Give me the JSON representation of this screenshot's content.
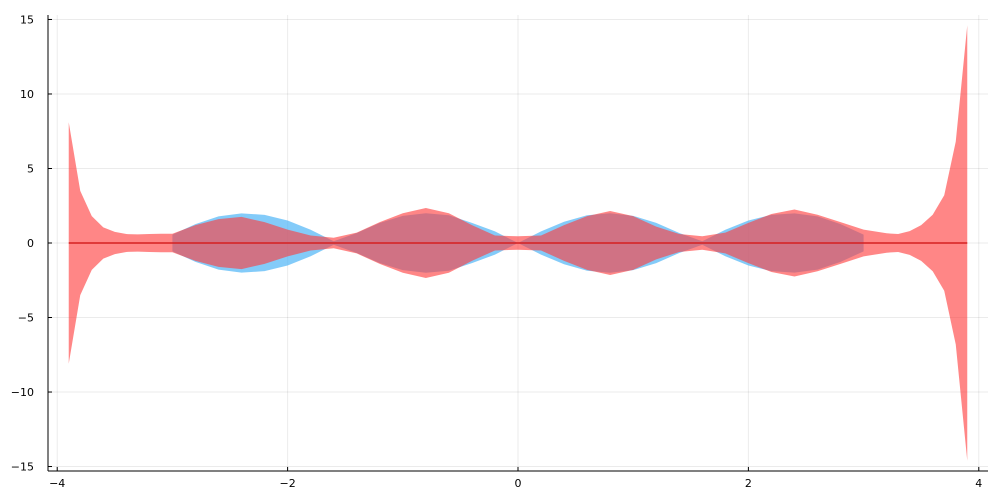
{
  "chart_data": {
    "type": "area",
    "title": "",
    "xlabel": "",
    "ylabel": "",
    "xlim": [
      -4.08,
      4.08
    ],
    "ylim": [
      -15.3,
      15.3
    ],
    "xticks": [
      -4,
      -2,
      0,
      2,
      4
    ],
    "yticks": [
      -15,
      -10,
      -5,
      0,
      5,
      10,
      15
    ],
    "xtick_labels": [
      "−4",
      "−2",
      "0",
      "2",
      "4"
    ],
    "ytick_labels": [
      "−15",
      "−10",
      "−5",
      "0",
      "5",
      "10",
      "15"
    ],
    "grid": true,
    "legend": "none",
    "colors": {
      "blue_band": "#59b9f7",
      "red_band": "#ff3b3b",
      "line": "#d62020"
    },
    "series": [
      {
        "kind": "band",
        "color": "#59b9f7",
        "opacity": 0.75,
        "x": [
          -3.0,
          -2.8,
          -2.6,
          -2.4,
          -2.2,
          -2.0,
          -1.8,
          -1.6,
          -1.4,
          -1.2,
          -1.0,
          -0.8,
          -0.6,
          -0.4,
          -0.2,
          0.0,
          0.2,
          0.4,
          0.6,
          0.8,
          1.0,
          1.2,
          1.4,
          1.6,
          1.8,
          2.0,
          2.2,
          2.4,
          2.6,
          2.8,
          3.0
        ],
        "upper": [
          0.56,
          1.27,
          1.79,
          1.99,
          1.89,
          1.51,
          0.89,
          0.12,
          0.67,
          1.35,
          1.82,
          2.0,
          1.86,
          1.35,
          0.78,
          0.0,
          0.78,
          1.43,
          1.86,
          2.0,
          1.82,
          1.35,
          0.67,
          0.12,
          0.89,
          1.51,
          1.89,
          1.99,
          1.79,
          1.27,
          0.56
        ],
        "lower": [
          -0.56,
          -1.27,
          -1.79,
          -1.99,
          -1.89,
          -1.51,
          -0.89,
          -0.12,
          -0.67,
          -1.35,
          -1.82,
          -2.0,
          -1.86,
          -1.35,
          -0.78,
          0.0,
          -0.78,
          -1.43,
          -1.86,
          -2.0,
          -1.82,
          -1.35,
          -0.67,
          -0.12,
          -0.89,
          -1.51,
          -1.89,
          -1.99,
          -1.79,
          -1.27,
          -0.56
        ]
      },
      {
        "kind": "band",
        "color": "#ff3b3b",
        "opacity": 0.62,
        "x": [
          -3.9,
          -3.8,
          -3.7,
          -3.6,
          -3.5,
          -3.4,
          -3.3,
          -3.2,
          -3.1,
          -3.0,
          -2.8,
          -2.6,
          -2.4,
          -2.2,
          -2.0,
          -1.8,
          -1.6,
          -1.4,
          -1.2,
          -1.0,
          -0.8,
          -0.6,
          -0.4,
          -0.2,
          0.0,
          0.2,
          0.4,
          0.6,
          0.8,
          1.0,
          1.2,
          1.4,
          1.6,
          1.8,
          2.0,
          2.2,
          2.4,
          2.6,
          2.8,
          3.0,
          3.2,
          3.3,
          3.4,
          3.5,
          3.6,
          3.7,
          3.8,
          3.9
        ],
        "upper": [
          8.1,
          3.5,
          1.8,
          1.05,
          0.75,
          0.6,
          0.58,
          0.6,
          0.62,
          0.62,
          1.2,
          1.6,
          1.75,
          1.4,
          0.9,
          0.5,
          0.35,
          0.7,
          1.4,
          2.0,
          2.35,
          2.0,
          1.2,
          0.5,
          0.45,
          0.5,
          1.2,
          1.8,
          2.15,
          1.8,
          1.1,
          0.6,
          0.45,
          0.7,
          1.35,
          1.95,
          2.25,
          1.9,
          1.4,
          0.9,
          0.65,
          0.6,
          0.8,
          1.2,
          1.9,
          3.2,
          6.8,
          14.6
        ],
        "lower": [
          -8.1,
          -3.5,
          -1.8,
          -1.05,
          -0.75,
          -0.6,
          -0.58,
          -0.6,
          -0.62,
          -0.62,
          -1.2,
          -1.6,
          -1.75,
          -1.4,
          -0.9,
          -0.5,
          -0.35,
          -0.7,
          -1.4,
          -2.0,
          -2.35,
          -2.0,
          -1.2,
          -0.5,
          -0.45,
          -0.5,
          -1.2,
          -1.8,
          -2.15,
          -1.8,
          -1.1,
          -0.6,
          -0.45,
          -0.7,
          -1.35,
          -1.95,
          -2.25,
          -1.9,
          -1.4,
          -0.9,
          -0.65,
          -0.6,
          -0.8,
          -1.2,
          -1.9,
          -3.2,
          -6.8,
          -14.6
        ]
      },
      {
        "kind": "line",
        "color": "#d62020",
        "x": [
          -3.9,
          3.9
        ],
        "y": [
          0,
          0
        ]
      }
    ]
  }
}
